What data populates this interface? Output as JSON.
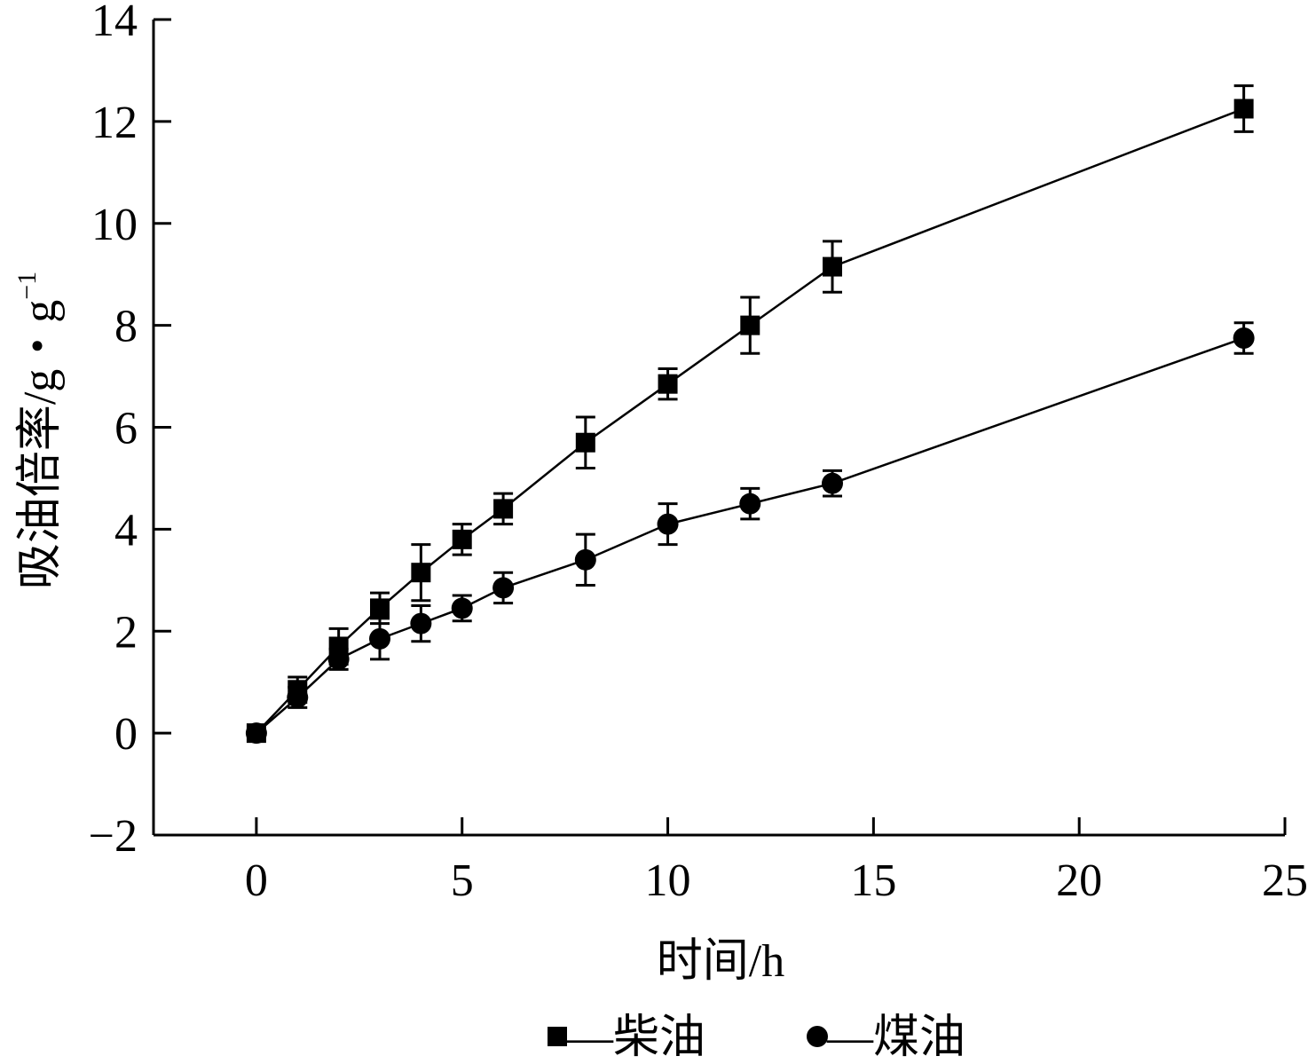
{
  "chart_data": {
    "type": "line",
    "xlabel": "时间/h",
    "ylabel_main": "吸油倍率/g・g",
    "ylabel_sup": "−1",
    "xlim": [
      -2.5,
      25
    ],
    "ylim": [
      -2,
      14
    ],
    "xticks": [
      0,
      5,
      10,
      15,
      20,
      25
    ],
    "yticks": [
      -2,
      0,
      2,
      4,
      6,
      8,
      10,
      12,
      14
    ],
    "xtick_labels": [
      "0",
      "5",
      "10",
      "15",
      "20",
      "25"
    ],
    "ytick_labels": [
      "−2",
      "0",
      "2",
      "4",
      "6",
      "8",
      "10",
      "12",
      "14"
    ],
    "grid": false,
    "legend_position": "bottom",
    "series": [
      {
        "name": "柴油",
        "legend_label": "—柴油",
        "marker": "square",
        "color": "#000000",
        "x": [
          0,
          1,
          2,
          3,
          4,
          5,
          6,
          8,
          10,
          12,
          14,
          24
        ],
        "y": [
          0,
          0.85,
          1.7,
          2.45,
          3.15,
          3.8,
          4.4,
          5.7,
          6.85,
          8.0,
          9.15,
          12.25
        ],
        "err": [
          0.05,
          0.25,
          0.35,
          0.3,
          0.55,
          0.3,
          0.3,
          0.5,
          0.3,
          0.55,
          0.5,
          0.45
        ]
      },
      {
        "name": "煤油",
        "legend_label": "—煤油",
        "marker": "circle",
        "color": "#000000",
        "x": [
          0,
          1,
          2,
          3,
          4,
          5,
          6,
          8,
          10,
          12,
          14,
          24
        ],
        "y": [
          0,
          0.7,
          1.45,
          1.85,
          2.15,
          2.45,
          2.85,
          3.4,
          4.1,
          4.5,
          4.9,
          7.75
        ],
        "err": [
          0.05,
          0.2,
          0.2,
          0.4,
          0.35,
          0.25,
          0.3,
          0.5,
          0.4,
          0.3,
          0.25,
          0.3
        ]
      }
    ]
  }
}
